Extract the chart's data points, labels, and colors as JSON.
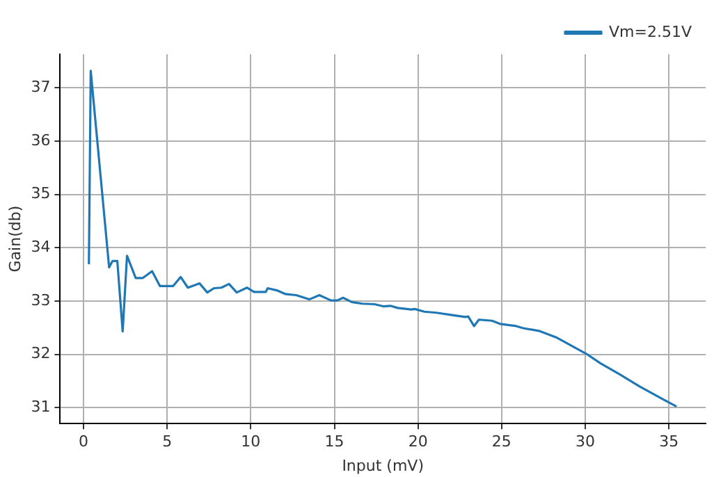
{
  "chart_data": {
    "type": "line",
    "xlabel": "Input (mV)",
    "ylabel": "Gain(db)",
    "xlim": [
      -1.4,
      37.2
    ],
    "ylim": [
      30.7,
      37.63
    ],
    "xticks": [
      0,
      5,
      10,
      15,
      20,
      25,
      30,
      35
    ],
    "yticks": [
      31,
      32,
      33,
      34,
      35,
      36,
      37
    ],
    "grid": true,
    "legend": "top right",
    "marker": "none",
    "line_style": "solid",
    "series": [
      {
        "name": "Vm=2.51V",
        "color": "#1f77b4",
        "x": [
          0.32,
          0.43,
          1.53,
          1.73,
          2.02,
          2.34,
          2.6,
          3.12,
          3.53,
          4.1,
          4.57,
          5.35,
          5.81,
          6.24,
          6.94,
          7.4,
          7.8,
          8.24,
          8.7,
          9.16,
          9.77,
          10.2,
          10.9,
          11.01,
          11.56,
          12.08,
          12.72,
          13.5,
          14.1,
          14.8,
          15.17,
          15.52,
          16.04,
          16.68,
          17.4,
          17.92,
          18.35,
          18.79,
          19.6,
          19.8,
          20.38,
          21.1,
          21.97,
          22.4,
          22.83,
          23.0,
          23.35,
          23.64,
          24.42,
          24.91,
          25.87,
          26.3,
          27.23,
          28.32,
          29.19,
          30.06,
          30.92,
          32.08,
          33.24,
          34.68,
          35.46
        ],
        "values": [
          33.69,
          37.32,
          33.63,
          33.75,
          33.75,
          32.43,
          33.85,
          33.43,
          33.43,
          33.56,
          33.28,
          33.28,
          33.45,
          33.25,
          33.33,
          33.16,
          33.24,
          33.25,
          33.32,
          33.16,
          33.25,
          33.17,
          33.17,
          33.24,
          33.2,
          33.13,
          33.11,
          33.03,
          33.11,
          33.01,
          33.01,
          33.06,
          32.98,
          32.95,
          32.94,
          32.9,
          32.91,
          32.87,
          32.84,
          32.85,
          32.8,
          32.78,
          32.74,
          32.72,
          32.7,
          32.71,
          32.53,
          32.65,
          32.63,
          32.57,
          32.53,
          32.49,
          32.44,
          32.31,
          32.16,
          32.01,
          31.83,
          31.62,
          31.4,
          31.15,
          31.02
        ]
      }
    ]
  }
}
